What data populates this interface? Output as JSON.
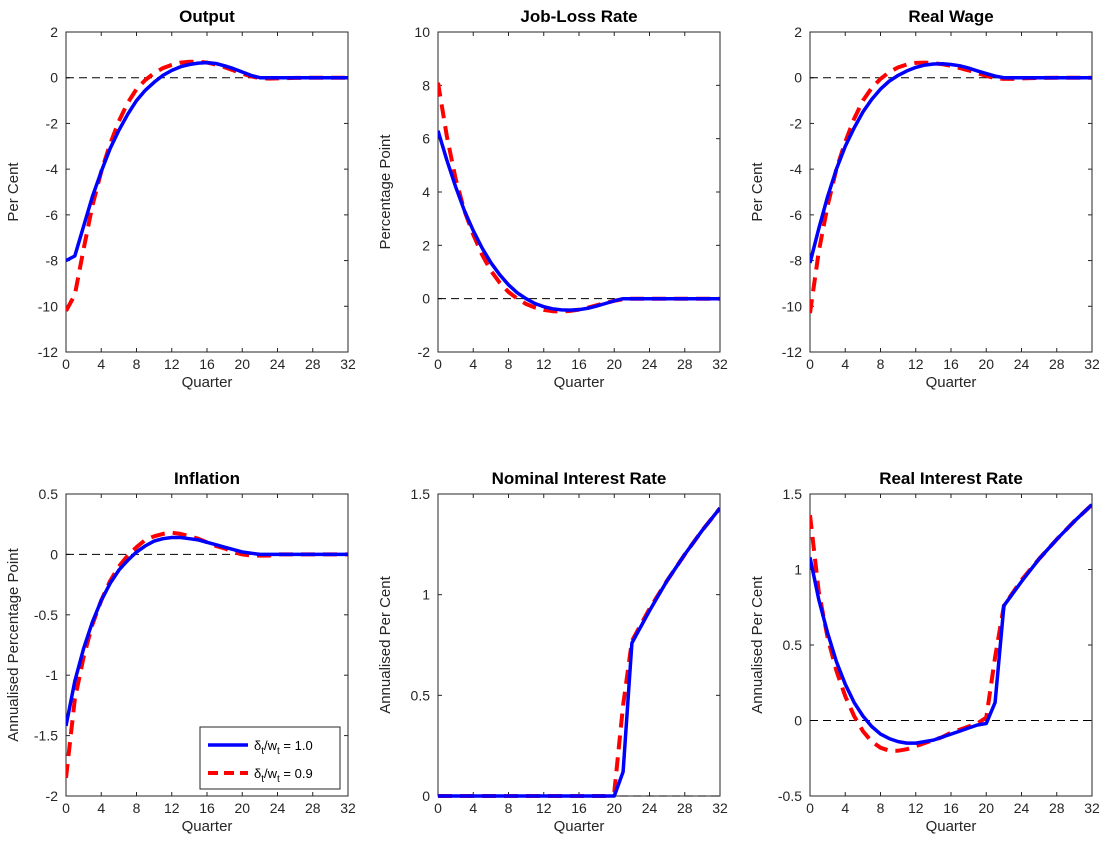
{
  "chart_data": [
    {
      "type": "line",
      "title": "Output",
      "xlabel": "Quarter",
      "ylabel": "Per Cent",
      "xlim": [
        0,
        32
      ],
      "ylim": [
        -12,
        2
      ],
      "xticks": [
        0,
        4,
        8,
        12,
        16,
        20,
        24,
        28,
        32
      ],
      "yticks": [
        -12,
        -10,
        -8,
        -6,
        -4,
        -2,
        0,
        2
      ],
      "zero_line": true,
      "series": [
        {
          "name": "δt/wt = 1.0",
          "color": "#0000ff",
          "style": "solid",
          "x": [
            0,
            1,
            2,
            3,
            4,
            5,
            6,
            7,
            8,
            9,
            10,
            11,
            12,
            13,
            14,
            15,
            16,
            17,
            18,
            19,
            20,
            21,
            22,
            23,
            24,
            26,
            28,
            30,
            32
          ],
          "y": [
            -8.0,
            -7.8,
            -6.5,
            -5.2,
            -4.1,
            -3.1,
            -2.3,
            -1.6,
            -1.0,
            -0.55,
            -0.2,
            0.1,
            0.32,
            0.48,
            0.58,
            0.64,
            0.66,
            0.62,
            0.52,
            0.4,
            0.25,
            0.1,
            0.0,
            0.0,
            0.0,
            0.0,
            0.0,
            0.0,
            0.0
          ]
        },
        {
          "name": "δt/wt = 0.9",
          "color": "#ff0000",
          "style": "dashed",
          "x": [
            0,
            1,
            2,
            3,
            4,
            5,
            6,
            7,
            8,
            9,
            10,
            11,
            12,
            13,
            14,
            15,
            16,
            17,
            18,
            19,
            20,
            21,
            22,
            23,
            24,
            26,
            28,
            30,
            32
          ],
          "y": [
            -10.2,
            -9.5,
            -7.5,
            -5.6,
            -4.1,
            -2.9,
            -1.9,
            -1.1,
            -0.5,
            -0.1,
            0.2,
            0.42,
            0.56,
            0.66,
            0.7,
            0.7,
            0.66,
            0.58,
            0.46,
            0.32,
            0.18,
            0.06,
            -0.02,
            -0.04,
            -0.03,
            -0.01,
            0.0,
            0.0,
            0.0
          ]
        }
      ]
    },
    {
      "type": "line",
      "title": "Job-Loss Rate",
      "xlabel": "Quarter",
      "ylabel": "Percentage Point",
      "xlim": [
        0,
        32
      ],
      "ylim": [
        -2,
        10
      ],
      "xticks": [
        0,
        4,
        8,
        12,
        16,
        20,
        24,
        28,
        32
      ],
      "yticks": [
        -2,
        0,
        2,
        4,
        6,
        8,
        10
      ],
      "zero_line": true,
      "series": [
        {
          "name": "δt/wt = 1.0",
          "color": "#0000ff",
          "style": "solid",
          "x": [
            0,
            1,
            2,
            3,
            4,
            5,
            6,
            7,
            8,
            9,
            10,
            11,
            12,
            13,
            14,
            15,
            16,
            17,
            18,
            19,
            20,
            21,
            22,
            23,
            24,
            26,
            28,
            30,
            32
          ],
          "y": [
            6.3,
            5.2,
            4.2,
            3.3,
            2.55,
            1.9,
            1.35,
            0.9,
            0.52,
            0.22,
            0.0,
            -0.18,
            -0.3,
            -0.38,
            -0.42,
            -0.43,
            -0.41,
            -0.36,
            -0.28,
            -0.18,
            -0.08,
            0.0,
            0.0,
            0.0,
            0.0,
            0.0,
            0.0,
            0.0,
            0.0
          ]
        },
        {
          "name": "δt/wt = 0.9",
          "color": "#ff0000",
          "style": "dashed",
          "x": [
            0,
            1,
            2,
            3,
            4,
            5,
            6,
            7,
            8,
            9,
            10,
            11,
            12,
            13,
            14,
            15,
            16,
            17,
            18,
            19,
            20,
            21,
            22,
            23,
            24,
            26,
            28,
            30,
            32
          ],
          "y": [
            8.1,
            6.1,
            4.5,
            3.3,
            2.4,
            1.65,
            1.05,
            0.6,
            0.25,
            0.0,
            -0.2,
            -0.33,
            -0.42,
            -0.47,
            -0.48,
            -0.46,
            -0.41,
            -0.34,
            -0.25,
            -0.16,
            -0.08,
            -0.02,
            0.0,
            0.0,
            0.0,
            0.0,
            0.0,
            0.0,
            0.0
          ]
        }
      ]
    },
    {
      "type": "line",
      "title": "Real Wage",
      "xlabel": "Quarter",
      "ylabel": "Per Cent",
      "xlim": [
        0,
        32
      ],
      "ylim": [
        -12,
        2
      ],
      "xticks": [
        0,
        4,
        8,
        12,
        16,
        20,
        24,
        28,
        32
      ],
      "yticks": [
        -12,
        -10,
        -8,
        -6,
        -4,
        -2,
        0,
        2
      ],
      "zero_line": true,
      "series": [
        {
          "name": "δt/wt = 1.0",
          "color": "#0000ff",
          "style": "solid",
          "x": [
            0,
            1,
            2,
            3,
            4,
            5,
            6,
            7,
            8,
            9,
            10,
            11,
            12,
            13,
            14,
            15,
            16,
            17,
            18,
            19,
            20,
            21,
            22,
            23,
            24,
            26,
            28,
            30,
            32
          ],
          "y": [
            -8.1,
            -6.6,
            -5.2,
            -4.0,
            -3.0,
            -2.2,
            -1.5,
            -0.95,
            -0.5,
            -0.15,
            0.1,
            0.3,
            0.45,
            0.55,
            0.6,
            0.61,
            0.58,
            0.52,
            0.42,
            0.3,
            0.18,
            0.07,
            0.0,
            0.0,
            0.0,
            0.0,
            0.0,
            0.0,
            0.0
          ]
        },
        {
          "name": "δt/wt = 0.9",
          "color": "#ff0000",
          "style": "dashed",
          "x": [
            0,
            1,
            2,
            3,
            4,
            5,
            6,
            7,
            8,
            9,
            10,
            11,
            12,
            13,
            14,
            15,
            16,
            17,
            18,
            19,
            20,
            21,
            22,
            23,
            24,
            26,
            28,
            30,
            32
          ],
          "y": [
            -10.3,
            -7.6,
            -5.6,
            -4.0,
            -2.8,
            -1.8,
            -1.0,
            -0.45,
            -0.05,
            0.25,
            0.45,
            0.58,
            0.65,
            0.66,
            0.64,
            0.59,
            0.52,
            0.42,
            0.32,
            0.2,
            0.08,
            -0.02,
            -0.05,
            -0.05,
            -0.03,
            -0.01,
            0.0,
            0.0,
            0.0
          ]
        }
      ]
    },
    {
      "type": "line",
      "title": "Inflation",
      "xlabel": "Quarter",
      "ylabel": "Annualised Percentage Point",
      "xlim": [
        0,
        32
      ],
      "ylim": [
        -2,
        0.5
      ],
      "xticks": [
        0,
        4,
        8,
        12,
        16,
        20,
        24,
        28,
        32
      ],
      "yticks": [
        -2,
        -1.5,
        -1,
        -0.5,
        0,
        0.5
      ],
      "zero_line": true,
      "legend": "bottom-right",
      "series": [
        {
          "name": "δt/wt = 1.0",
          "color": "#0000ff",
          "style": "solid",
          "x": [
            0,
            1,
            2,
            3,
            4,
            5,
            6,
            7,
            8,
            9,
            10,
            11,
            12,
            13,
            14,
            15,
            16,
            17,
            18,
            19,
            20,
            21,
            22,
            23,
            24,
            26,
            28,
            30,
            32
          ],
          "y": [
            -1.42,
            -1.05,
            -0.78,
            -0.56,
            -0.38,
            -0.24,
            -0.13,
            -0.05,
            0.02,
            0.07,
            0.11,
            0.13,
            0.14,
            0.14,
            0.13,
            0.12,
            0.1,
            0.08,
            0.06,
            0.04,
            0.02,
            0.01,
            0.0,
            0.0,
            0.0,
            0.0,
            0.0,
            0.0,
            0.0
          ]
        },
        {
          "name": "δt/wt = 0.9",
          "color": "#ff0000",
          "style": "dashed",
          "x": [
            0,
            1,
            2,
            3,
            4,
            5,
            6,
            7,
            8,
            9,
            10,
            11,
            12,
            13,
            14,
            15,
            16,
            17,
            18,
            19,
            20,
            21,
            22,
            23,
            24,
            26,
            28,
            30,
            32
          ],
          "y": [
            -1.85,
            -1.2,
            -0.85,
            -0.58,
            -0.38,
            -0.22,
            -0.1,
            -0.01,
            0.06,
            0.12,
            0.15,
            0.17,
            0.18,
            0.17,
            0.15,
            0.13,
            0.1,
            0.07,
            0.05,
            0.02,
            0.0,
            -0.01,
            -0.01,
            -0.01,
            0.0,
            0.0,
            0.0,
            0.0,
            0.0
          ]
        }
      ]
    },
    {
      "type": "line",
      "title": "Nominal Interest Rate",
      "xlabel": "Quarter",
      "ylabel": "Annualised Per Cent",
      "xlim": [
        0,
        32
      ],
      "ylim": [
        0,
        1.5
      ],
      "xticks": [
        0,
        4,
        8,
        12,
        16,
        20,
        24,
        28,
        32
      ],
      "yticks": [
        0,
        0.5,
        1,
        1.5
      ],
      "zero_line": true,
      "series": [
        {
          "name": "δt/wt = 1.0",
          "color": "#0000ff",
          "style": "solid",
          "x": [
            0,
            4,
            8,
            12,
            16,
            19,
            20,
            21,
            22,
            24,
            26,
            28,
            30,
            32
          ],
          "y": [
            0.0,
            0.0,
            0.0,
            0.0,
            0.0,
            0.0,
            0.0,
            0.12,
            0.76,
            0.92,
            1.07,
            1.2,
            1.32,
            1.43
          ]
        },
        {
          "name": "δt/wt = 0.9",
          "color": "#ff0000",
          "style": "dashed",
          "x": [
            0,
            4,
            8,
            12,
            16,
            19,
            20,
            21,
            22,
            24,
            26,
            28,
            30,
            32
          ],
          "y": [
            0.0,
            0.0,
            0.0,
            0.0,
            0.0,
            0.0,
            0.02,
            0.45,
            0.77,
            0.93,
            1.07,
            1.2,
            1.32,
            1.43
          ]
        }
      ]
    },
    {
      "type": "line",
      "title": "Real Interest Rate",
      "xlabel": "Quarter",
      "ylabel": "Annualised Per Cent",
      "xlim": [
        0,
        32
      ],
      "ylim": [
        -0.5,
        1.5
      ],
      "xticks": [
        0,
        4,
        8,
        12,
        16,
        20,
        24,
        28,
        32
      ],
      "yticks": [
        -0.5,
        0,
        0.5,
        1,
        1.5
      ],
      "zero_line": true,
      "series": [
        {
          "name": "δt/wt = 1.0",
          "color": "#0000ff",
          "style": "solid",
          "x": [
            0,
            1,
            2,
            3,
            4,
            5,
            6,
            7,
            8,
            9,
            10,
            11,
            12,
            13,
            14,
            15,
            16,
            17,
            18,
            19,
            20,
            21,
            22,
            24,
            26,
            28,
            30,
            32
          ],
          "y": [
            1.08,
            0.8,
            0.58,
            0.39,
            0.24,
            0.12,
            0.03,
            -0.04,
            -0.09,
            -0.12,
            -0.14,
            -0.15,
            -0.15,
            -0.14,
            -0.13,
            -0.11,
            -0.09,
            -0.07,
            -0.05,
            -0.03,
            -0.02,
            0.12,
            0.76,
            0.92,
            1.07,
            1.2,
            1.32,
            1.43
          ]
        },
        {
          "name": "δt/wt = 0.9",
          "color": "#ff0000",
          "style": "dashed",
          "x": [
            0,
            1,
            2,
            3,
            4,
            5,
            6,
            7,
            8,
            9,
            10,
            11,
            12,
            13,
            14,
            15,
            16,
            17,
            18,
            19,
            20,
            21,
            22,
            24,
            26,
            28,
            30,
            32
          ],
          "y": [
            1.36,
            0.85,
            0.55,
            0.33,
            0.16,
            0.03,
            -0.07,
            -0.14,
            -0.18,
            -0.2,
            -0.2,
            -0.19,
            -0.17,
            -0.15,
            -0.13,
            -0.11,
            -0.08,
            -0.06,
            -0.04,
            -0.02,
            0.02,
            0.42,
            0.76,
            0.93,
            1.07,
            1.2,
            1.32,
            1.43
          ]
        }
      ]
    }
  ]
}
